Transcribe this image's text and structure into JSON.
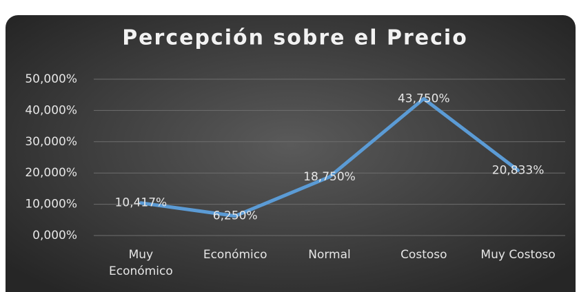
{
  "chart_data": {
    "type": "line",
    "title": "Percepción sobre el Precio",
    "categories": [
      "Muy Económico",
      "Económico",
      "Normal",
      "Costoso",
      "Muy Costoso"
    ],
    "series": [
      {
        "name": "Percepción",
        "color": "#5b9bd5",
        "values": [
          10.417,
          6.25,
          18.75,
          43.75,
          20.833
        ],
        "value_labels": [
          "10,417%",
          "6,250%",
          "18,750%",
          "43,750%",
          "20,833%"
        ]
      }
    ],
    "ylim": [
      0,
      50
    ],
    "yticks": [
      {
        "value": 0,
        "label": "0,000%"
      },
      {
        "value": 10,
        "label": "10,000%"
      },
      {
        "value": 20,
        "label": "20,000%"
      },
      {
        "value": 30,
        "label": "30,000%"
      },
      {
        "value": 40,
        "label": "40,000%"
      },
      {
        "value": 50,
        "label": "50,000%"
      }
    ],
    "grid": true
  }
}
